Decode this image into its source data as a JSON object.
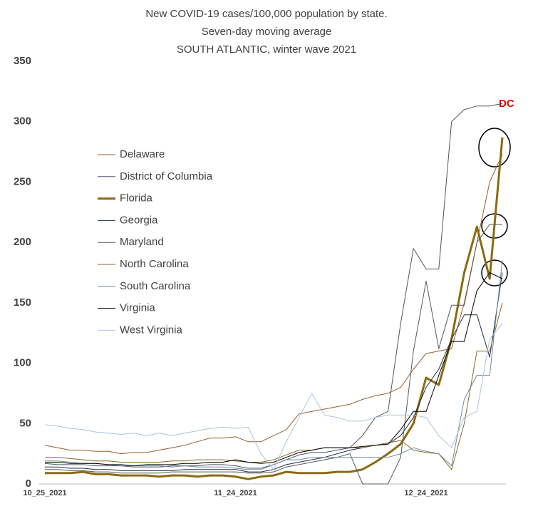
{
  "chart_data": {
    "type": "line",
    "title": [
      "New COVID-19 cases/100,000 population by state.",
      "Seven-day moving average",
      "SOUTH ATLANTIC, winter wave 2021"
    ],
    "categories": [
      "10_25_2021",
      null,
      null,
      null,
      null,
      null,
      null,
      null,
      null,
      null,
      null,
      null,
      null,
      null,
      null,
      "11_24_2021",
      null,
      null,
      null,
      null,
      null,
      null,
      null,
      null,
      null,
      null,
      null,
      null,
      null,
      null,
      "12_24_2021",
      null,
      null,
      null,
      null,
      null,
      null
    ],
    "ylim": [
      0,
      350
    ],
    "yticks": [
      0,
      50,
      100,
      150,
      200,
      250,
      300,
      350
    ],
    "grid": false,
    "legend": "left",
    "annotations": [
      {
        "text": "DC",
        "color": "#e00000"
      }
    ],
    "series": [
      {
        "name": "Delaware",
        "color": "#9c5b2e",
        "width": 1,
        "values": [
          32,
          30,
          28,
          28,
          27,
          27,
          25,
          26,
          26,
          28,
          30,
          32,
          35,
          38,
          38,
          39,
          35,
          35,
          40,
          45,
          58,
          60,
          62,
          64,
          66,
          70,
          73,
          75,
          80,
          95,
          108,
          110,
          112,
          150,
          200,
          250,
          273
        ]
      },
      {
        "name": "District of Columbia",
        "color": "#4a5568",
        "width": 1,
        "values": [
          17,
          16,
          16,
          16,
          15,
          15,
          15,
          14,
          14,
          14,
          15,
          15,
          15,
          16,
          16,
          15,
          13,
          13,
          16,
          20,
          24,
          26,
          26,
          28,
          30,
          40,
          55,
          60,
          133,
          195,
          178,
          178,
          300,
          310,
          313,
          313,
          315
        ]
      },
      {
        "name": "Florida",
        "color": "#8b6b10",
        "width": 3,
        "values": [
          9,
          9,
          9,
          10,
          8,
          8,
          7,
          7,
          7,
          6,
          7,
          7,
          6,
          7,
          7,
          6,
          4,
          6,
          7,
          10,
          9,
          9,
          9,
          10,
          10,
          12,
          18,
          25,
          33,
          50,
          88,
          82,
          120,
          175,
          213,
          170,
          287
        ]
      },
      {
        "name": "Georgia",
        "color": "#1f2d4d",
        "width": 1,
        "values": [
          14,
          14,
          13,
          13,
          12,
          12,
          11,
          11,
          11,
          11,
          11,
          12,
          12,
          12,
          12,
          12,
          10,
          10,
          12,
          16,
          18,
          20,
          22,
          25,
          28,
          30,
          32,
          33,
          40,
          55,
          80,
          95,
          120,
          140,
          140,
          105,
          175
        ]
      },
      {
        "name": "Maryland",
        "color": "#595959",
        "width": 1,
        "values": [
          12,
          12,
          11,
          11,
          10,
          10,
          9,
          9,
          9,
          9,
          10,
          10,
          10,
          10,
          10,
          10,
          9,
          9,
          10,
          14,
          16,
          18,
          20,
          22,
          25,
          0,
          0,
          0,
          22,
          110,
          168,
          112,
          148,
          148,
          200,
          215,
          215
        ]
      },
      {
        "name": "North Carolina",
        "color": "#8a6a1e",
        "width": 1,
        "values": [
          22,
          22,
          21,
          20,
          19,
          19,
          18,
          18,
          18,
          18,
          19,
          19,
          20,
          20,
          20,
          19,
          18,
          18,
          20,
          24,
          28,
          28,
          30,
          30,
          30,
          30,
          32,
          34,
          36,
          28,
          26,
          25,
          12,
          50,
          110,
          110,
          150
        ]
      },
      {
        "name": "South Carolina",
        "color": "#6b8ba4",
        "width": 1,
        "values": [
          19,
          19,
          18,
          17,
          17,
          16,
          15,
          15,
          15,
          15,
          14,
          15,
          14,
          14,
          14,
          13,
          12,
          12,
          16,
          20,
          20,
          22,
          22,
          22,
          22,
          22,
          22,
          22,
          25,
          30,
          27,
          25,
          15,
          70,
          90,
          90,
          185
        ]
      },
      {
        "name": "Virginia",
        "color": "#000000",
        "width": 1,
        "values": [
          18,
          18,
          17,
          17,
          17,
          16,
          16,
          15,
          16,
          16,
          16,
          17,
          17,
          18,
          18,
          20,
          18,
          17,
          18,
          22,
          26,
          28,
          30,
          30,
          30,
          31,
          32,
          33,
          45,
          60,
          60,
          90,
          118,
          118,
          160,
          175,
          170
        ]
      },
      {
        "name": "West Virginia",
        "color": "#a9c4e0",
        "width": 1,
        "values": [
          49,
          48,
          46,
          45,
          43,
          42,
          41,
          42,
          40,
          42,
          40,
          42,
          44,
          46,
          47,
          46,
          47,
          25,
          12,
          35,
          55,
          75,
          57,
          55,
          52,
          52,
          55,
          57,
          57,
          57,
          55,
          40,
          30,
          55,
          60,
          120,
          133
        ]
      }
    ]
  }
}
